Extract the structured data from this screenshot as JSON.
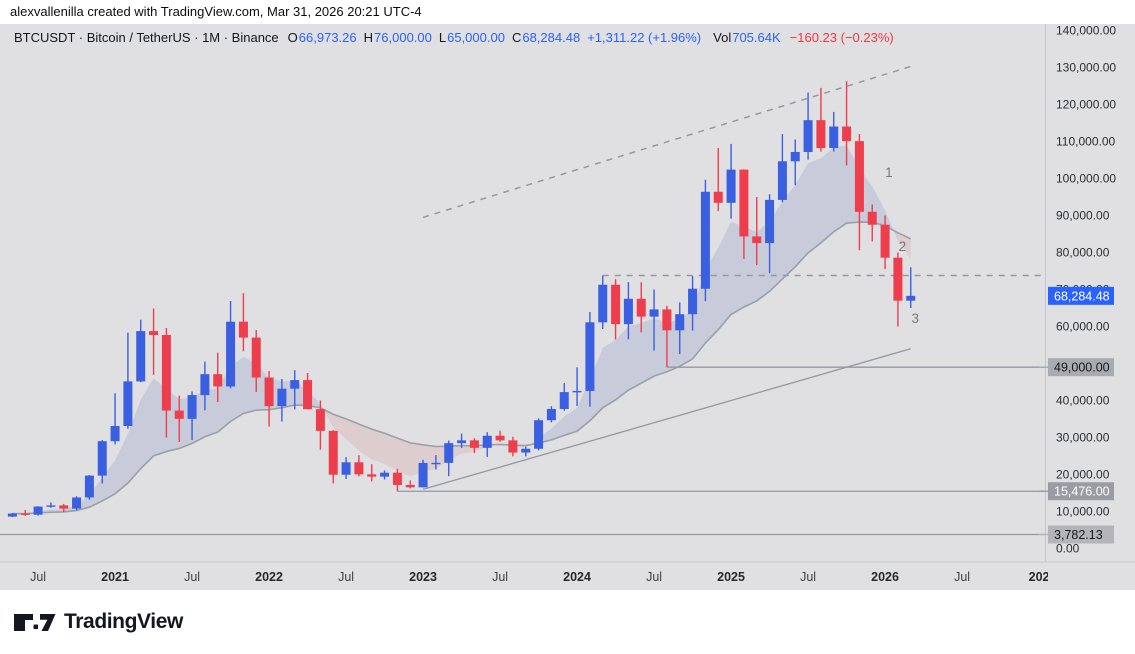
{
  "attribution": "alexvallenilla created with TradingView.com, Mar 31, 2026 20:21 UTC-4",
  "logo": {
    "text": "TradingView"
  },
  "symbol_bar": {
    "segments": [
      {
        "t": "BTCUSDT · Bitcoin / TetherUS · 1M · Binance",
        "c": "#131722",
        "gap": 0
      },
      {
        "t": "O",
        "c": "#131722",
        "gap": 9
      },
      {
        "t": "66,973.26",
        "c": "#2962FF",
        "gap": 1
      },
      {
        "t": "H",
        "c": "#131722",
        "gap": 7
      },
      {
        "t": "76,000.00",
        "c": "#2962FF",
        "gap": 1
      },
      {
        "t": "L",
        "c": "#131722",
        "gap": 7
      },
      {
        "t": "65,000.00",
        "c": "#2962FF",
        "gap": 1
      },
      {
        "t": "C",
        "c": "#131722",
        "gap": 7
      },
      {
        "t": "68,284.48",
        "c": "#2962FF",
        "gap": 1
      },
      {
        "t": "+1,311.22 (+1.96%)",
        "c": "#2962FF",
        "gap": 7
      },
      {
        "t": "Vol",
        "c": "#131722",
        "gap": 12
      },
      {
        "t": "705.64K",
        "c": "#2962FF",
        "gap": 1
      },
      {
        "t": "−160.23 (−0.23%)",
        "c": "#F23645",
        "gap": 9
      }
    ]
  },
  "colors": {
    "up": "#3a5fe0",
    "down": "#ee3d4c",
    "accent_tag": "#2962FF",
    "chart_bg": "#e0e0e2",
    "axis_text": "#2a2d35",
    "time_text": "#3c3f46",
    "drawing": "#9598a1",
    "ma_slow": "#9aa0a8",
    "cloud_bull": "rgba(98,122,190,0.20)",
    "cloud_bear": "rgba(204,106,106,0.16)",
    "annotation": "#76787e",
    "separator": "#c6c7ca"
  },
  "chart_data": {
    "type": "candlestick",
    "title": "BTCUSDT · Bitcoin / TetherUS · 1M · Binance",
    "symbol": "BTCUSDT",
    "interval": "1M",
    "exchange": "Binance",
    "last_price": 68284.48,
    "last_change": "+1,311.22 (+1.96%)",
    "volume": "705.64K",
    "months": [
      "2020-05",
      "2020-06",
      "2020-07",
      "2020-08",
      "2020-09",
      "2020-10",
      "2020-11",
      "2020-12",
      "2021-01",
      "2021-02",
      "2021-03",
      "2021-04",
      "2021-05",
      "2021-06",
      "2021-07",
      "2021-08",
      "2021-09",
      "2021-10",
      "2021-11",
      "2021-12",
      "2022-01",
      "2022-02",
      "2022-03",
      "2022-04",
      "2022-05",
      "2022-06",
      "2022-07",
      "2022-08",
      "2022-09",
      "2022-10",
      "2022-11",
      "2022-12",
      "2023-01",
      "2023-02",
      "2023-03",
      "2023-04",
      "2023-05",
      "2023-06",
      "2023-07",
      "2023-08",
      "2023-09",
      "2023-10",
      "2023-11",
      "2023-12",
      "2024-01",
      "2024-02",
      "2024-03",
      "2024-04",
      "2024-05",
      "2024-06",
      "2024-07",
      "2024-08",
      "2024-09",
      "2024-10",
      "2024-11",
      "2024-12",
      "2025-01",
      "2025-02",
      "2025-03",
      "2025-04",
      "2025-05",
      "2025-06",
      "2025-07",
      "2025-08",
      "2025-09",
      "2025-10",
      "2025-11",
      "2025-12",
      "2026-01",
      "2026-02",
      "2026-03"
    ],
    "ohlc": [
      [
        8620,
        9580,
        8520,
        9450
      ],
      [
        9450,
        10380,
        8830,
        9140
      ],
      [
        9140,
        11440,
        8900,
        11330
      ],
      [
        11330,
        12470,
        11000,
        11650
      ],
      [
        11650,
        12050,
        9830,
        10780
      ],
      [
        10780,
        14100,
        10380,
        13800
      ],
      [
        13800,
        19860,
        13200,
        19700
      ],
      [
        19700,
        29300,
        17570,
        29000
      ],
      [
        29000,
        41950,
        28130,
        33110
      ],
      [
        33110,
        58350,
        32350,
        45160
      ],
      [
        45160,
        61840,
        44950,
        58760
      ],
      [
        58760,
        64850,
        46930,
        57700
      ],
      [
        57700,
        59590,
        30000,
        37280
      ],
      [
        37280,
        41330,
        28800,
        35040
      ],
      [
        35040,
        42450,
        29300,
        41460
      ],
      [
        41460,
        50500,
        37330,
        47110
      ],
      [
        47110,
        52920,
        39600,
        43790
      ],
      [
        43790,
        66900,
        43290,
        61300
      ],
      [
        61300,
        69000,
        53300,
        57000
      ],
      [
        57000,
        59040,
        42330,
        46210
      ],
      [
        46210,
        47990,
        32950,
        38480
      ],
      [
        38480,
        45820,
        34320,
        43190
      ],
      [
        43190,
        48190,
        37580,
        45520
      ],
      [
        45520,
        47440,
        37600,
        37650
      ],
      [
        37650,
        40020,
        26700,
        31790
      ],
      [
        31790,
        31980,
        17590,
        19940
      ],
      [
        19940,
        24670,
        18780,
        23300
      ],
      [
        23300,
        25210,
        19520,
        20050
      ],
      [
        20050,
        22800,
        18130,
        19420
      ],
      [
        19420,
        21080,
        18650,
        20490
      ],
      [
        20490,
        21480,
        15476,
        17170
      ],
      [
        17170,
        18390,
        16260,
        16540
      ],
      [
        16540,
        23960,
        16500,
        23130
      ],
      [
        23130,
        25250,
        21350,
        23150
      ],
      [
        23150,
        29180,
        19550,
        28470
      ],
      [
        28470,
        31050,
        27170,
        29230
      ],
      [
        29230,
        29820,
        25800,
        27210
      ],
      [
        27210,
        31430,
        24750,
        30470
      ],
      [
        30470,
        31850,
        28850,
        29230
      ],
      [
        29230,
        30200,
        24900,
        25930
      ],
      [
        25930,
        27490,
        24900,
        26960
      ],
      [
        26960,
        35150,
        26540,
        34670
      ],
      [
        34670,
        38450,
        34100,
        37710
      ],
      [
        37710,
        44700,
        37250,
        42270
      ],
      [
        42270,
        48970,
        38500,
        42580
      ],
      [
        42580,
        63930,
        38330,
        61130
      ],
      [
        61130,
        73790,
        59320,
        71280
      ],
      [
        71280,
        72800,
        56500,
        60640
      ],
      [
        60640,
        71980,
        56550,
        67490
      ],
      [
        67490,
        71950,
        58430,
        62670
      ],
      [
        62670,
        69980,
        53500,
        64620
      ],
      [
        64620,
        65600,
        49000,
        58970
      ],
      [
        58970,
        66500,
        52550,
        63330
      ],
      [
        63330,
        73620,
        58900,
        70210
      ],
      [
        70210,
        99660,
        66840,
        96410
      ],
      [
        96410,
        108270,
        91180,
        93430
      ],
      [
        93430,
        109350,
        89160,
        102400
      ],
      [
        102400,
        102500,
        78260,
        84350
      ],
      [
        84350,
        95000,
        76600,
        82550
      ],
      [
        82550,
        95770,
        74440,
        94210
      ],
      [
        94210,
        112000,
        93570,
        104650
      ],
      [
        104650,
        110530,
        98200,
        107170
      ],
      [
        107170,
        123250,
        105110,
        115770
      ],
      [
        115770,
        124500,
        107270,
        108240
      ],
      [
        108240,
        118000,
        107300,
        114050
      ],
      [
        114050,
        126300,
        103550,
        110100
      ],
      [
        110100,
        112000,
        80600,
        91000
      ],
      [
        91000,
        93000,
        83000,
        87500
      ],
      [
        87500,
        90000,
        75500,
        78600
      ],
      [
        78600,
        80000,
        60000,
        66973.26
      ],
      [
        66973.26,
        76000,
        65000,
        68284.48
      ]
    ],
    "y_axis": {
      "min": 0,
      "max": 140000,
      "step": 10000,
      "grid": false
    },
    "x_axis": {
      "labels": [
        {
          "text": "Jul",
          "m": 2,
          "bold": false
        },
        {
          "text": "2021",
          "m": 8,
          "bold": true
        },
        {
          "text": "Jul",
          "m": 14,
          "bold": false
        },
        {
          "text": "2022",
          "m": 20,
          "bold": true
        },
        {
          "text": "Jul",
          "m": 26,
          "bold": false
        },
        {
          "text": "2023",
          "m": 32,
          "bold": true
        },
        {
          "text": "Jul",
          "m": 38,
          "bold": false
        },
        {
          "text": "2024",
          "m": 44,
          "bold": true
        },
        {
          "text": "Jul",
          "m": 50,
          "bold": false
        },
        {
          "text": "2025",
          "m": 56,
          "bold": true
        },
        {
          "text": "Jul",
          "m": 62,
          "bold": false
        },
        {
          "text": "2026",
          "m": 68,
          "bold": true
        },
        {
          "text": "Jul",
          "m": 74,
          "bold": false
        },
        {
          "text": "202",
          "m": 80,
          "bold": true
        }
      ]
    },
    "overlays": {
      "type": "ema",
      "ma_fast_period": 5,
      "ma_slow_period": 20,
      "legend_position": "none"
    },
    "drawings": [
      {
        "name": "channel-top-trendline",
        "type": "trendline",
        "style": "dashed",
        "from": {
          "m": 32,
          "price": 89500
        },
        "to": {
          "m": 70.2,
          "price": 130500
        }
      },
      {
        "name": "resistance-73790",
        "type": "horizontal-ray",
        "style": "dashed",
        "from_m": 46,
        "price": 73790
      },
      {
        "name": "support-trendline",
        "type": "trendline",
        "style": "solid",
        "from": {
          "m": 32,
          "price": 16000
        },
        "to": {
          "m": 70,
          "price": 54000
        }
      },
      {
        "name": "level-49000",
        "type": "horizontal-ray",
        "style": "solid",
        "from_m": 51,
        "price": 49000
      },
      {
        "name": "level-15476",
        "type": "horizontal-ray",
        "style": "solid",
        "from_m": 30,
        "price": 15476
      },
      {
        "name": "level-3782",
        "type": "horizontal-line",
        "style": "solid",
        "price": 3782.13
      }
    ],
    "annotations": [
      {
        "text": "1",
        "m": 68.3,
        "price": 101500
      },
      {
        "text": "2",
        "m": 69.35,
        "price": 81500
      },
      {
        "text": "3",
        "m": 70.35,
        "price": 62000
      }
    ],
    "price_tags": [
      {
        "text": "68,284.48",
        "price": 68284.48,
        "bg": "#2962FF",
        "fg": "#ffffff",
        "stub": false
      },
      {
        "text": "49,000.00",
        "price": 49000,
        "bg": "#a9abb2",
        "fg": "#17181c",
        "stub": true
      },
      {
        "text": "15,476.00",
        "price": 15476,
        "bg": "#9a9ca3",
        "fg": "#ffffff",
        "stub": true
      },
      {
        "text": "3,782.13",
        "price": 3782.13,
        "bg": "#b3b5bb",
        "fg": "#17181c",
        "stub": true
      }
    ]
  }
}
